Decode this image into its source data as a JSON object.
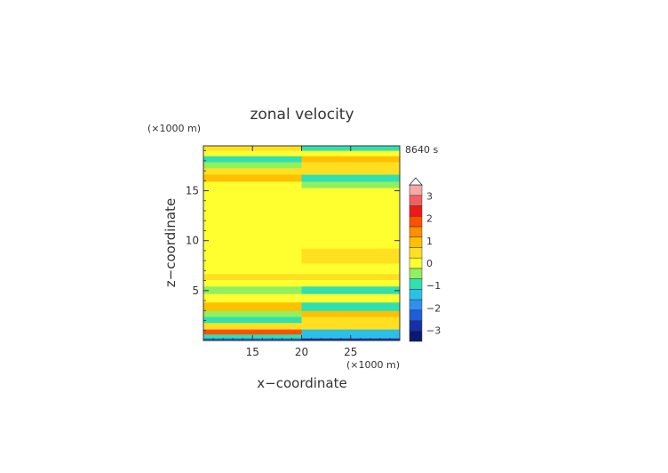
{
  "chart_data": {
    "type": "heatmap",
    "title": "zonal velocity",
    "xlabel": "x−coordinate",
    "ylabel": "z−coordinate",
    "x_unit": "(×1000 m)",
    "y_unit": "(×1000 m)",
    "time_label": "8640 s",
    "xlim": [
      10,
      30
    ],
    "ylim": [
      0,
      19.5
    ],
    "x_ticks": [
      15,
      20,
      25
    ],
    "x_tick_labels": [
      "15",
      "20",
      "25"
    ],
    "y_ticks": [
      5,
      10,
      15
    ],
    "y_tick_labels": [
      "5",
      "10",
      "15"
    ],
    "colorbar": {
      "labels": [
        "3",
        "2",
        "1",
        "0",
        "−1",
        "−2",
        "−3"
      ],
      "label_values": [
        3,
        2,
        1,
        0,
        -1,
        -2,
        -3
      ],
      "range": [
        -3.5,
        3.5
      ],
      "colors": [
        "#0a1a70",
        "#1530a8",
        "#1e5ed8",
        "#2e90f0",
        "#2cc0e8",
        "#30e0b0",
        "#90f060",
        "#ffff30",
        "#ffe020",
        "#ffc000",
        "#ff9000",
        "#ff5000",
        "#f01818",
        "#f06060",
        "#f8a8a8"
      ]
    },
    "bands": [
      {
        "z": 0.1,
        "left": -2.3,
        "right": -2.6
      },
      {
        "z": 0.4,
        "left": -1.0,
        "right": -1.4
      },
      {
        "z": 0.9,
        "left": 1.9,
        "right": -1.2
      },
      {
        "z": 1.4,
        "left": 0.3,
        "right": 0.4
      },
      {
        "z": 2.2,
        "left": -0.7,
        "right": 0.4
      },
      {
        "z": 2.6,
        "left": -0.3,
        "right": 0.7
      },
      {
        "z": 3.4,
        "left": 0.7,
        "right": -0.7
      },
      {
        "z": 4.3,
        "left": 0.0,
        "right": -0.2
      },
      {
        "z": 5.1,
        "left": -0.6,
        "right": -0.7
      },
      {
        "z": 5.8,
        "left": 0.0,
        "right": 0.0
      },
      {
        "z": 6.4,
        "left": 0.6,
        "right": 0.3
      },
      {
        "z": 7.0,
        "left": 0.0,
        "right": 0.0
      },
      {
        "z": 8.5,
        "left": 0.2,
        "right": 0.3
      },
      {
        "z": 10.0,
        "left": 0.0,
        "right": 0.0
      },
      {
        "z": 11.5,
        "left": 0.1,
        "right": 0.1
      },
      {
        "z": 12.8,
        "left": -0.2,
        "right": -0.2
      },
      {
        "z": 14.0,
        "left": 0.0,
        "right": 0.0
      },
      {
        "z": 15.0,
        "left": 0.1,
        "right": 0.1
      },
      {
        "z": 15.6,
        "left": 0.0,
        "right": -0.6
      },
      {
        "z": 16.3,
        "left": 0.9,
        "right": -0.8
      },
      {
        "z": 17.0,
        "left": 0.3,
        "right": 0.3
      },
      {
        "z": 17.6,
        "left": -0.6,
        "right": 0.4
      },
      {
        "z": 18.2,
        "left": -0.9,
        "right": 0.9
      },
      {
        "z": 18.8,
        "left": 0.2,
        "right": 0.1
      },
      {
        "z": 19.3,
        "left": 0.6,
        "right": -0.8
      }
    ]
  }
}
